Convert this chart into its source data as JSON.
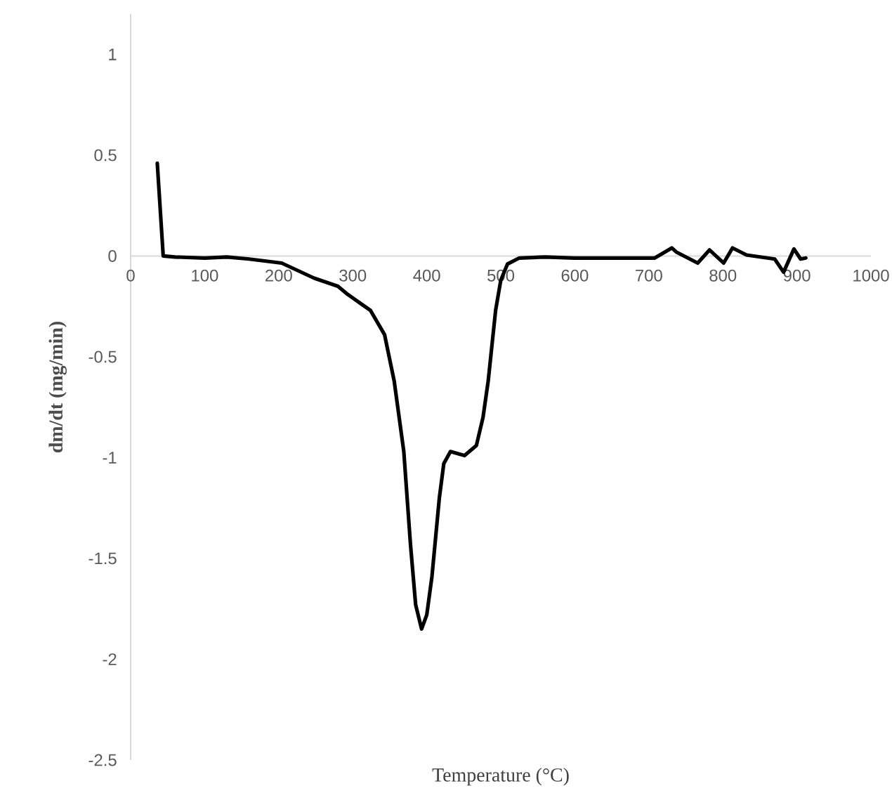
{
  "chart_data": {
    "type": "line",
    "xlabel": "Temperature (°C)",
    "ylabel": "dm/dt (mg/min)",
    "xlim": [
      0,
      1000
    ],
    "ylim": [
      -2.5,
      1.2
    ],
    "xticks": [
      0,
      100,
      200,
      300,
      400,
      500,
      600,
      700,
      800,
      900,
      1000
    ],
    "yticks": [
      -2.5,
      -2,
      -1.5,
      -1,
      -0.5,
      0,
      0.5,
      1
    ],
    "marker": "none",
    "line_style": "solid",
    "series": [
      {
        "color": "#000000",
        "x": [
          36,
          44,
          60,
          100,
          130,
          160,
          204,
          248,
          280,
          293,
          324,
          343,
          356,
          369,
          378,
          385,
          393,
          400,
          407,
          417,
          423,
          432,
          451,
          467,
          476,
          483,
          493,
          500,
          509,
          525,
          560,
          600,
          650,
          680,
          708,
          731,
          737,
          766,
          782,
          801,
          813,
          832,
          870,
          882,
          896,
          905,
          912
        ],
        "values": [
          0.46,
          0,
          -0.005,
          -0.01,
          -0.005,
          -0.015,
          -0.035,
          -0.11,
          -0.15,
          -0.19,
          -0.27,
          -0.39,
          -0.62,
          -0.97,
          -1.43,
          -1.73,
          -1.85,
          -1.78,
          -1.59,
          -1.2,
          -1.03,
          -0.97,
          -0.99,
          -0.94,
          -0.8,
          -0.62,
          -0.27,
          -0.12,
          -0.04,
          -0.01,
          -0.005,
          -0.01,
          -0.01,
          -0.01,
          -0.01,
          0.04,
          0.02,
          -0.035,
          0.03,
          -0.035,
          0.04,
          0.005,
          -0.015,
          -0.08,
          0.035,
          -0.015,
          -0.01
        ]
      }
    ]
  }
}
